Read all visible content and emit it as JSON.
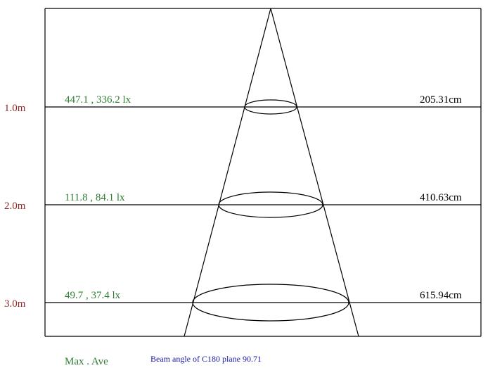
{
  "colors": {
    "line": "#000000",
    "distance_label": "#8b2a2a",
    "lux_label": "#2e7d32",
    "beam_angle_text": "#1a1aa8",
    "diameter_label": "#000000"
  },
  "levels": [
    {
      "distance": "1.0m",
      "lux": "447.1 , 336.2 lx",
      "diameter": "205.31cm"
    },
    {
      "distance": "2.0m",
      "lux": "111.8 , 84.1 lx",
      "diameter": "410.63cm"
    },
    {
      "distance": "3.0m",
      "lux": "49.7 , 37.4 lx",
      "diameter": "615.94cm"
    }
  ],
  "footer": {
    "max_ave_label": "Max . Ave",
    "beam_angle_text": "Beam angle of C180 plane 90.71"
  }
}
